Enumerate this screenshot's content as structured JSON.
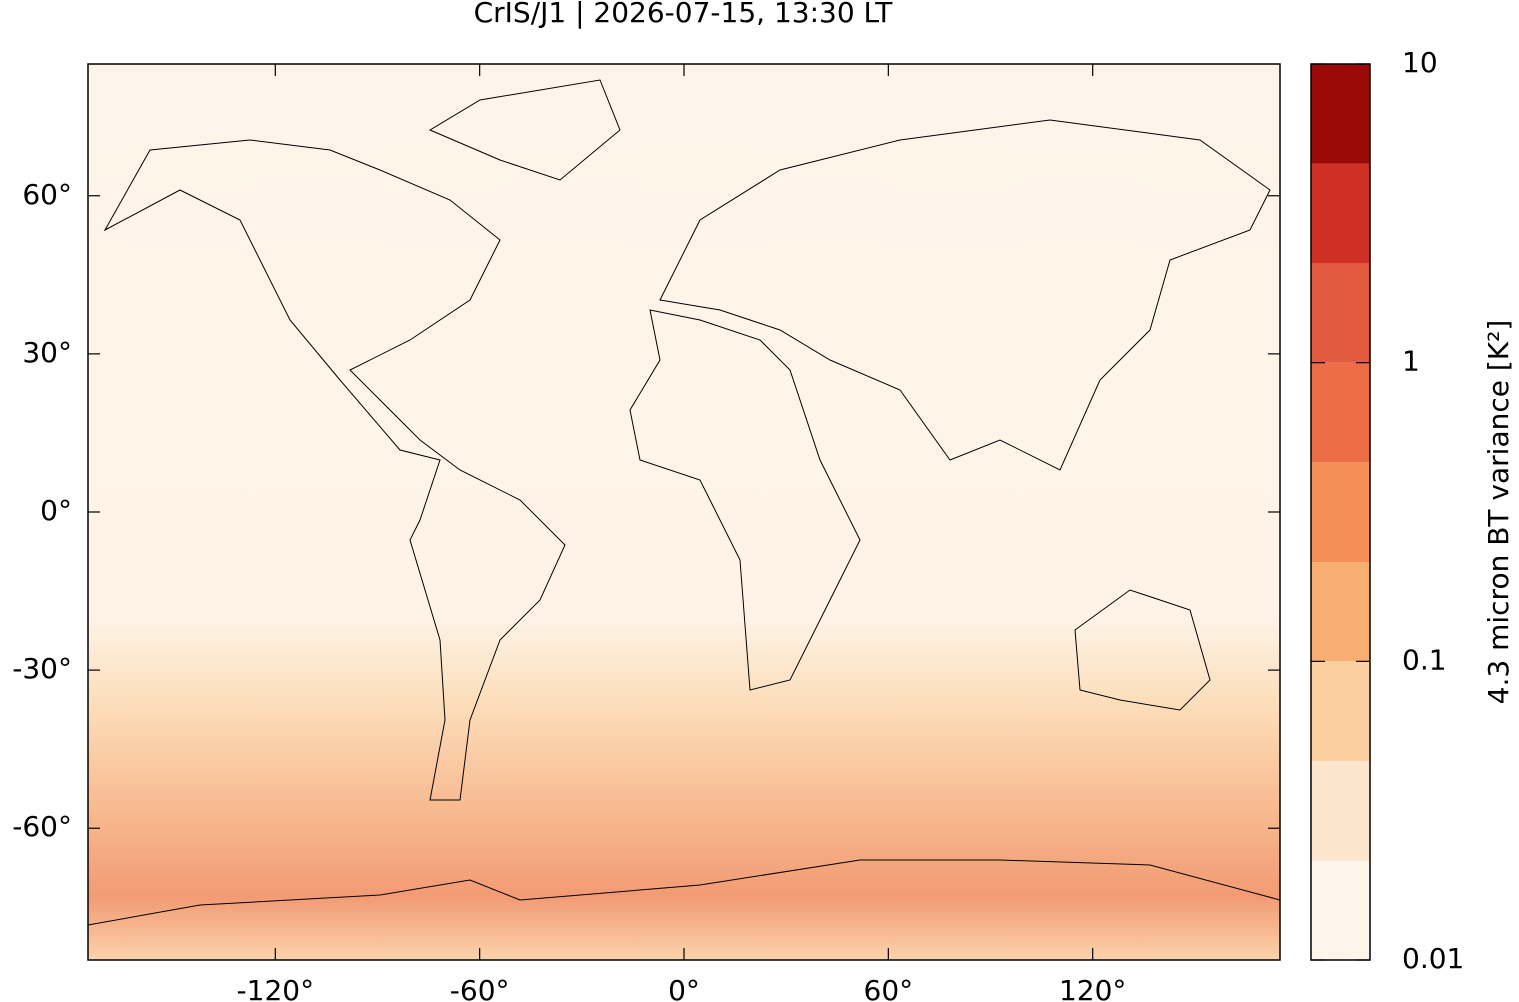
{
  "chart_data": {
    "type": "map",
    "title": "CrIS/J1 | 2026-07-15, 13:30 LT",
    "xlim": [
      -175,
      175
    ],
    "ylim": [
      -85,
      85
    ],
    "xticks": [
      {
        "value": -120,
        "label": "-120°"
      },
      {
        "value": -60,
        "label": "-60°"
      },
      {
        "value": 0,
        "label": "0°"
      },
      {
        "value": 60,
        "label": "60°"
      },
      {
        "value": 120,
        "label": "120°"
      }
    ],
    "yticks": [
      {
        "value": -60,
        "label": "-60°"
      },
      {
        "value": -30,
        "label": "-30°"
      },
      {
        "value": 0,
        "label": "0°"
      },
      {
        "value": 30,
        "label": "30°"
      },
      {
        "value": 60,
        "label": "60°"
      }
    ],
    "colorbar": {
      "label": "4.3 micron BT variance [K²]",
      "scale": "log",
      "lim": [
        0.01,
        10
      ],
      "ticks": [
        0.01,
        0.1,
        1,
        10
      ],
      "levels": [
        0.01,
        0.0215,
        0.0464,
        0.1,
        0.215,
        0.464,
        1,
        2.15,
        4.64,
        10
      ],
      "colors": [
        "#fef5ea",
        "#fbe5cd",
        "#fbcf9f",
        "#f9ae71",
        "#f68e58",
        "#ec6d47",
        "#e25a3f",
        "#cf2f24",
        "#9b0a07"
      ]
    }
  }
}
